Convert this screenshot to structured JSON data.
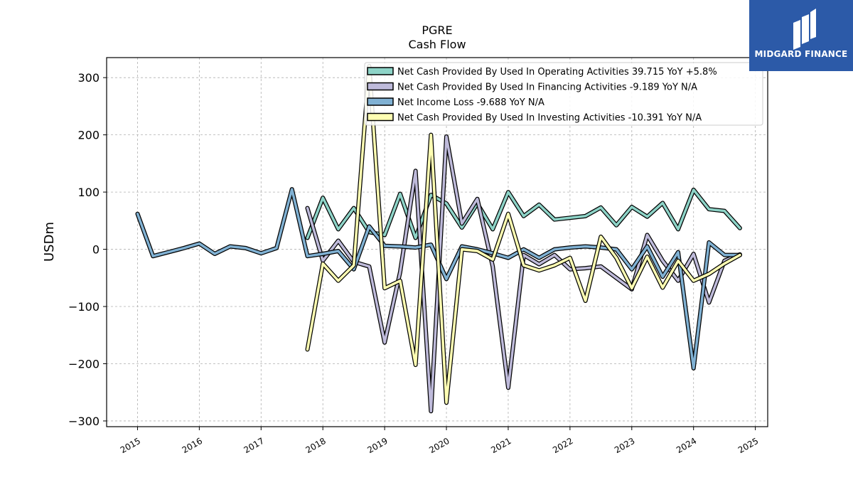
{
  "brand": {
    "name": "MIDGARD FINANCE",
    "color": "#2c5aa8"
  },
  "chart_data": {
    "type": "line",
    "title": "PGRE",
    "subtitle": "Cash Flow",
    "xlabel": "",
    "ylabel": "USDm",
    "xlim": [
      2014.5,
      2025.2
    ],
    "ylim": [
      -310,
      335
    ],
    "x_ticks": [
      2015,
      2016,
      2017,
      2018,
      2019,
      2020,
      2021,
      2022,
      2023,
      2024,
      2025
    ],
    "x_tick_labels": [
      "2015",
      "2016",
      "2017",
      "2018",
      "2019",
      "2020",
      "2021",
      "2022",
      "2023",
      "2024",
      "2025"
    ],
    "y_ticks": [
      -300,
      -200,
      -100,
      0,
      100,
      200,
      300
    ],
    "y_tick_labels": [
      "−300",
      "−200",
      "−100",
      "0",
      "100",
      "200",
      "300"
    ],
    "grid": true,
    "legend_position": "top-right",
    "series": [
      {
        "name": "Net Cash Provided By Used In Operating Activities  39.715 YoY +5.8%",
        "color": "#8dd3c7",
        "points": [
          [
            2017.75,
            20
          ],
          [
            2018.0,
            90
          ],
          [
            2018.25,
            35
          ],
          [
            2018.5,
            72
          ],
          [
            2018.75,
            30
          ],
          [
            2019.0,
            25
          ],
          [
            2019.25,
            97
          ],
          [
            2019.5,
            20
          ],
          [
            2019.75,
            95
          ],
          [
            2020.0,
            80
          ],
          [
            2020.25,
            38
          ],
          [
            2020.5,
            80
          ],
          [
            2020.75,
            35
          ],
          [
            2021.0,
            100
          ],
          [
            2021.25,
            58
          ],
          [
            2021.5,
            78
          ],
          [
            2021.75,
            52
          ],
          [
            2022.0,
            55
          ],
          [
            2022.25,
            58
          ],
          [
            2022.5,
            73
          ],
          [
            2022.75,
            42
          ],
          [
            2023.0,
            74
          ],
          [
            2023.25,
            57
          ],
          [
            2023.5,
            81
          ],
          [
            2023.75,
            35
          ],
          [
            2024.0,
            104
          ],
          [
            2024.25,
            70
          ],
          [
            2024.5,
            67
          ],
          [
            2024.75,
            37
          ]
        ]
      },
      {
        "name": "Net Cash Provided By Used In Financing Activities  -9.189 YoY N/A",
        "color": "#bebada",
        "points": [
          [
            2017.75,
            72
          ],
          [
            2018.0,
            -20
          ],
          [
            2018.25,
            15
          ],
          [
            2018.5,
            -22
          ],
          [
            2018.75,
            -30
          ],
          [
            2019.0,
            -163
          ],
          [
            2019.25,
            -40
          ],
          [
            2019.5,
            137
          ],
          [
            2019.75,
            -283
          ],
          [
            2020.0,
            197
          ],
          [
            2020.25,
            45
          ],
          [
            2020.5,
            88
          ],
          [
            2020.75,
            -30
          ],
          [
            2021.0,
            -242
          ],
          [
            2021.25,
            -10
          ],
          [
            2021.5,
            -26
          ],
          [
            2021.75,
            -10
          ],
          [
            2022.0,
            -35
          ],
          [
            2022.25,
            -33
          ],
          [
            2022.5,
            -30
          ],
          [
            2022.75,
            -50
          ],
          [
            2023.0,
            -70
          ],
          [
            2023.25,
            25
          ],
          [
            2023.5,
            -20
          ],
          [
            2023.75,
            -55
          ],
          [
            2024.0,
            -8
          ],
          [
            2024.25,
            -93
          ],
          [
            2024.5,
            -20
          ],
          [
            2024.75,
            -9
          ]
        ]
      },
      {
        "name": "Net Income Loss  -9.688 YoY N/A",
        "color": "#80b1d3",
        "points": [
          [
            2015.0,
            62
          ],
          [
            2015.25,
            -12
          ],
          [
            2015.5,
            -5
          ],
          [
            2015.75,
            2
          ],
          [
            2016.0,
            10
          ],
          [
            2016.25,
            -8
          ],
          [
            2016.5,
            5
          ],
          [
            2016.75,
            2
          ],
          [
            2017.0,
            -7
          ],
          [
            2017.25,
            2
          ],
          [
            2017.5,
            105
          ],
          [
            2017.75,
            -12
          ],
          [
            2018.0,
            -8
          ],
          [
            2018.25,
            -3
          ],
          [
            2018.5,
            -35
          ],
          [
            2018.75,
            40
          ],
          [
            2019.0,
            6
          ],
          [
            2019.25,
            5
          ],
          [
            2019.5,
            3
          ],
          [
            2019.75,
            8
          ],
          [
            2020.0,
            -52
          ],
          [
            2020.25,
            5
          ],
          [
            2020.5,
            0
          ],
          [
            2020.75,
            -7
          ],
          [
            2021.0,
            -15
          ],
          [
            2021.25,
            0
          ],
          [
            2021.5,
            -15
          ],
          [
            2021.75,
            0
          ],
          [
            2022.0,
            3
          ],
          [
            2022.25,
            5
          ],
          [
            2022.5,
            3
          ],
          [
            2022.75,
            0
          ],
          [
            2023.0,
            -35
          ],
          [
            2023.25,
            5
          ],
          [
            2023.5,
            -48
          ],
          [
            2023.75,
            -5
          ],
          [
            2024.0,
            -208
          ],
          [
            2024.25,
            12
          ],
          [
            2024.5,
            -10
          ],
          [
            2024.75,
            -10
          ]
        ]
      },
      {
        "name": "Net Cash Provided By Used In Investing Activities  -10.391 YoY N/A",
        "color": "#ffffb3",
        "points": [
          [
            2017.75,
            -175
          ],
          [
            2018.0,
            -25
          ],
          [
            2018.25,
            -55
          ],
          [
            2018.5,
            -28
          ],
          [
            2018.75,
            320
          ],
          [
            2019.0,
            -68
          ],
          [
            2019.25,
            -55
          ],
          [
            2019.5,
            -202
          ],
          [
            2019.75,
            200
          ],
          [
            2020.0,
            -268
          ],
          [
            2020.25,
            0
          ],
          [
            2020.5,
            -3
          ],
          [
            2020.75,
            -18
          ],
          [
            2021.0,
            62
          ],
          [
            2021.25,
            -28
          ],
          [
            2021.5,
            -37
          ],
          [
            2021.75,
            -28
          ],
          [
            2022.0,
            -15
          ],
          [
            2022.25,
            -90
          ],
          [
            2022.5,
            22
          ],
          [
            2022.75,
            -15
          ],
          [
            2023.0,
            -68
          ],
          [
            2023.25,
            -13
          ],
          [
            2023.5,
            -67
          ],
          [
            2023.75,
            -20
          ],
          [
            2024.0,
            -55
          ],
          [
            2024.25,
            -43
          ],
          [
            2024.5,
            -25
          ],
          [
            2024.75,
            -10
          ]
        ]
      }
    ]
  }
}
